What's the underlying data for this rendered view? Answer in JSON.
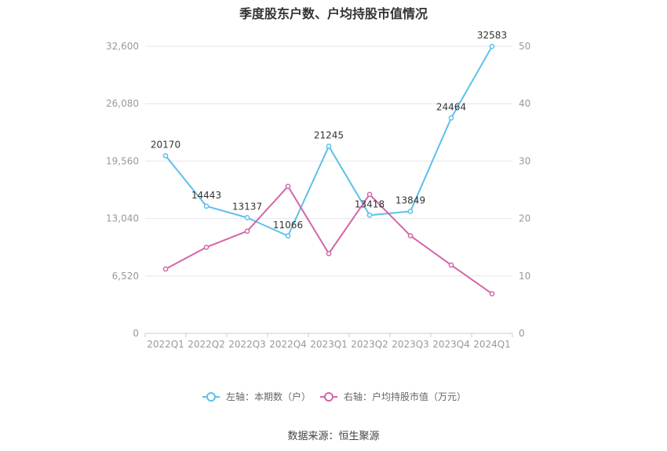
{
  "title": "季度股东户数、户均持股市值情况",
  "source": "数据来源：恒生聚源",
  "colors": {
    "left_series": "#5bc0eb",
    "right_series": "#d466a8",
    "grid": "#e6e6ee",
    "axis_text": "#999999"
  },
  "chart_data": {
    "type": "line",
    "title": "季度股东户数、户均持股市值情况",
    "categories": [
      "2022Q1",
      "2022Q2",
      "2022Q3",
      "2022Q4",
      "2023Q1",
      "2023Q2",
      "2023Q3",
      "2023Q4",
      "2024Q1"
    ],
    "left_axis": {
      "ylim": [
        0,
        32600
      ],
      "ticks": [
        "0",
        "6,520",
        "13,040",
        "19,560",
        "26,080",
        "32,600"
      ]
    },
    "right_axis": {
      "ylim": [
        0,
        50
      ],
      "ticks": [
        "0",
        "10",
        "20",
        "30",
        "40",
        "50"
      ]
    },
    "series": [
      {
        "name": "左轴：本期数（户）",
        "axis": "left",
        "color": "#5bc0eb",
        "values": [
          20170,
          14443,
          13137,
          11066,
          21245,
          13418,
          13849,
          24464,
          32583
        ],
        "labels": [
          "20170",
          "14443",
          "13137",
          "11066",
          "21245",
          "13418",
          "13849",
          "24464",
          "32583"
        ]
      },
      {
        "name": "右轴：户均持股市值（万元）",
        "axis": "right",
        "color": "#d466a8",
        "values": [
          11.2,
          15.0,
          17.8,
          25.6,
          13.9,
          24.2,
          17.0,
          11.9,
          6.9
        ]
      }
    ],
    "grid": true,
    "legend_position": "bottom"
  }
}
